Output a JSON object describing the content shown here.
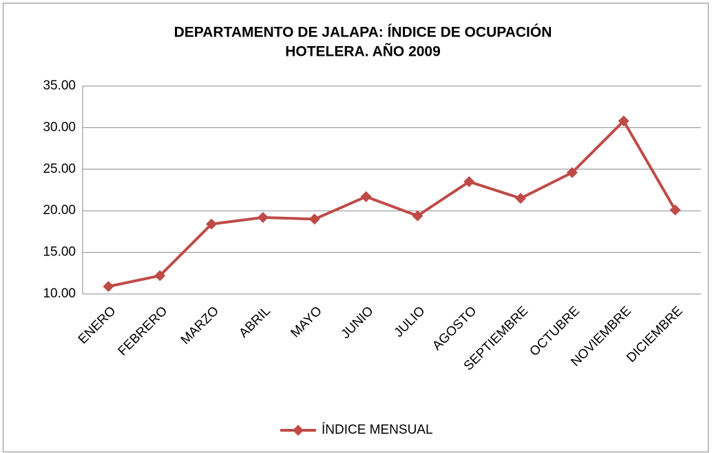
{
  "chart_data": {
    "type": "line",
    "title": [
      "DEPARTAMENTO DE JALAPA: ÍNDICE DE OCUPACIÓN",
      "HOTELERA. AÑO 2009"
    ],
    "categories": [
      "ENERO",
      "FEBRERO",
      "MARZO",
      "ABRIL",
      "MAYO",
      "JUNIO",
      "JULIO",
      "AGOSTO",
      "SEPTIEMBRE",
      "OCTUBRE",
      "NOVIEMBRE",
      "DICIEMBRE"
    ],
    "series": [
      {
        "name": "ÍNDICE MENSUAL",
        "color": "#be4b48",
        "values": [
          10.9,
          12.2,
          18.4,
          19.2,
          19.0,
          21.7,
          19.4,
          23.5,
          21.5,
          24.6,
          30.8,
          20.1
        ]
      }
    ],
    "ylim": [
      10,
      35
    ],
    "yticks": [
      {
        "value": 10,
        "label": "10.00"
      },
      {
        "value": 15,
        "label": "15.00"
      },
      {
        "value": 20,
        "label": "20.00"
      },
      {
        "value": 25,
        "label": "25.00"
      },
      {
        "value": 30,
        "label": "30.00"
      },
      {
        "value": 35,
        "label": "35.00"
      }
    ],
    "grid": true,
    "legend": "bottom"
  }
}
